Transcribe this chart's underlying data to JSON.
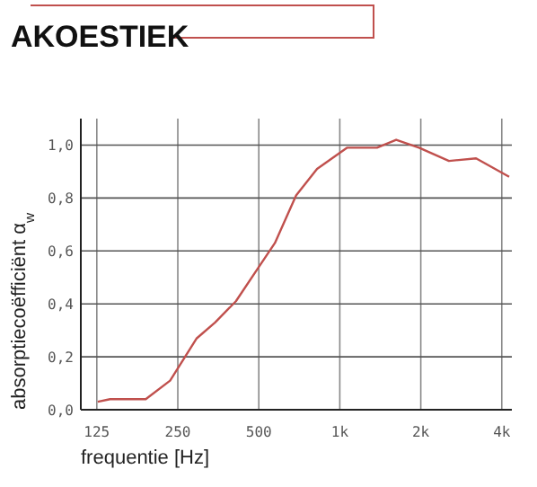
{
  "chart_data": {
    "type": "line",
    "title": "AKOESTIEK",
    "xlabel": "frequentie [Hz]",
    "ylabel": "absorptiecoëfficiënt α$_{w}$",
    "log": "x",
    "grid": true,
    "marker": "none",
    "line_style": "solid",
    "x": [
      126,
      140,
      190,
      234,
      294,
      344,
      411,
      493,
      574,
      688,
      823,
      1063,
      1375,
      1620,
      1970,
      2545,
      3210,
      4260
    ],
    "series": [
      {
        "color": "#c0504d",
        "values": [
          0.03,
          0.04,
          0.04,
          0.11,
          0.27,
          0.33,
          0.41,
          0.53,
          0.63,
          0.81,
          0.91,
          0.99,
          0.99,
          1.02,
          0.99,
          0.94,
          0.95,
          0.88
        ]
      }
    ],
    "xlim": [
      109,
      4360
    ],
    "ylim": [
      0,
      1.1
    ],
    "xticks": [
      125,
      {
        "value": 250,
        "label": "250"
      },
      {
        "value": 500,
        "label": "500"
      },
      {
        "value": 1000,
        "label": "1k"
      },
      {
        "value": 2000,
        "label": "2k"
      },
      {
        "value": 4000,
        "label": "4k"
      }
    ],
    "yticks": [
      {
        "value": 0,
        "label": "0,0"
      },
      {
        "value": 0.2,
        "label": "0,2"
      },
      {
        "value": 0.4,
        "label": "0,4"
      },
      {
        "value": 0.6,
        "label": "0,6"
      },
      {
        "value": 0.8,
        "label": "0,8"
      },
      {
        "value": 1,
        "label": "1,0"
      }
    ]
  }
}
